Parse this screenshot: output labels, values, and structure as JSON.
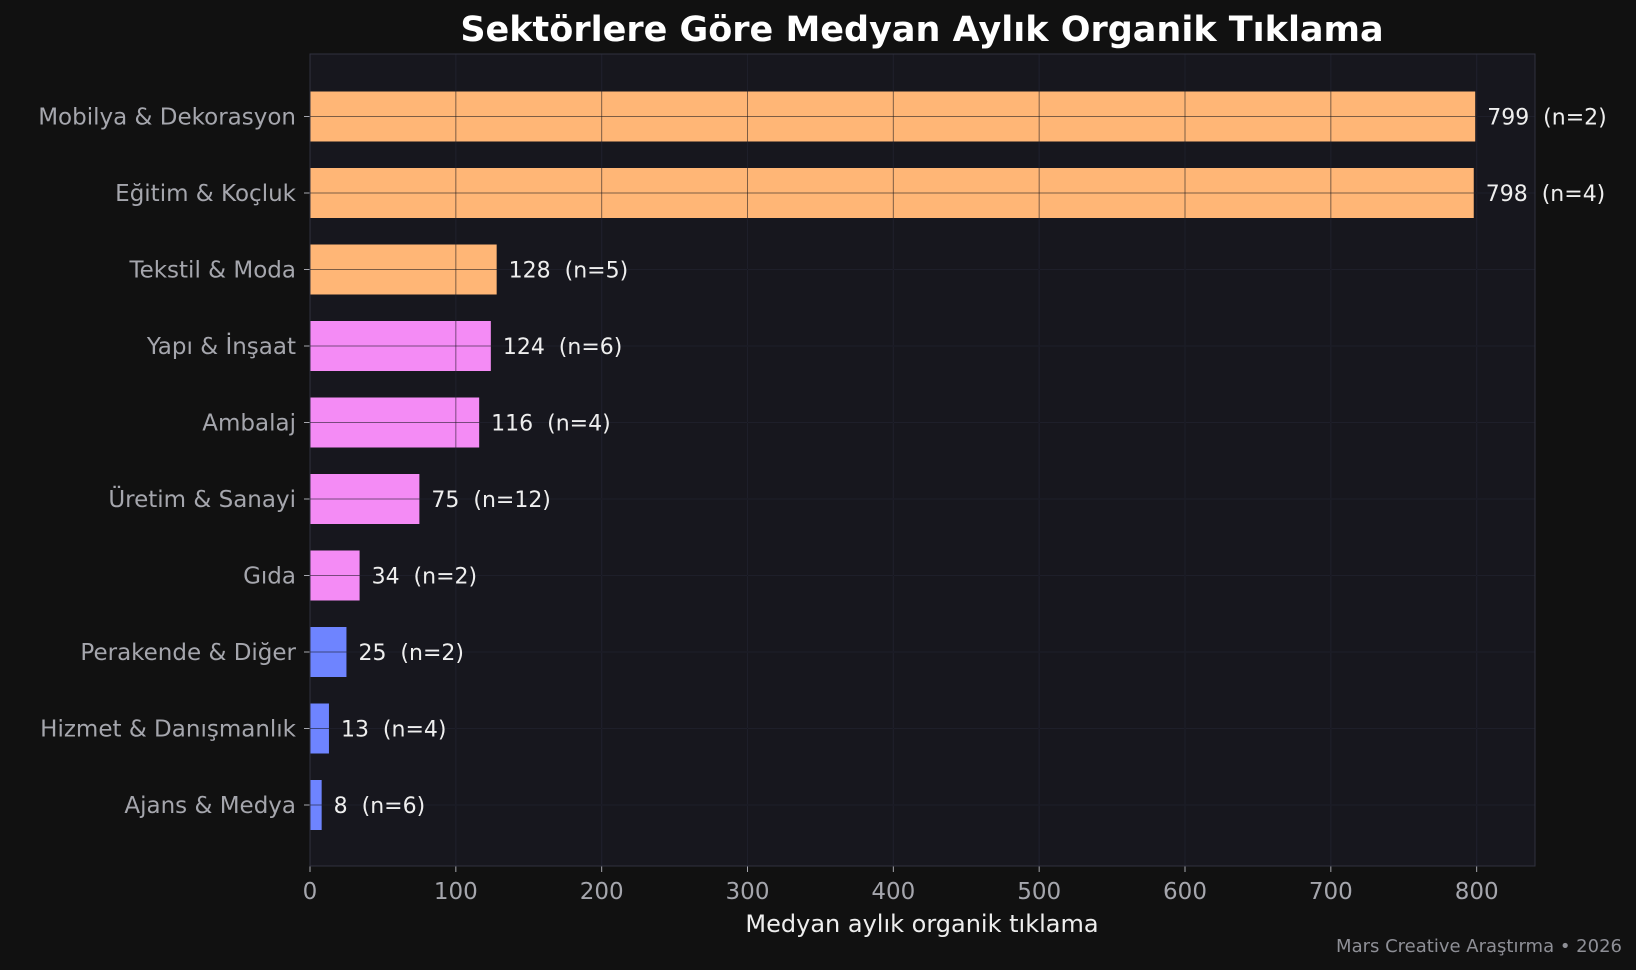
{
  "chart_data": {
    "type": "bar",
    "orientation": "horizontal",
    "title": "Sektörlere Göre Medyan Aylık Organik Tıklama",
    "xlabel": "Medyan aylık organik tıklama",
    "ylabel": "",
    "xlim": [
      0,
      840
    ],
    "xticks": [
      0,
      100,
      200,
      300,
      400,
      500,
      600,
      700,
      800
    ],
    "grid": true,
    "categories": [
      "Mobilya & Dekorasyon",
      "Eğitim & Koçluk",
      "Tekstil & Moda",
      "Yapı & İnşaat",
      "Ambalaj",
      "Üretim & Sanayi",
      "Gıda",
      "Perakende & Diğer",
      "Hizmet & Danışmanlık",
      "Ajans & Medya"
    ],
    "values": [
      799,
      798,
      128,
      124,
      116,
      75,
      34,
      25,
      13,
      8
    ],
    "value_labels": [
      "799  (n=2)",
      "798  (n=4)",
      "128  (n=5)",
      "124  (n=6)",
      "116  (n=4)",
      "75  (n=12)",
      "34  (n=2)",
      "25  (n=2)",
      "13  (n=4)",
      "8  (n=6)"
    ],
    "bar_colors": [
      "#ffb676",
      "#ffb676",
      "#ffb676",
      "#f48bf5",
      "#f48bf5",
      "#f48bf5",
      "#f48bf5",
      "#6e84ff",
      "#6e84ff",
      "#6e84ff"
    ]
  },
  "source_note": "Mars Creative Araştırma • 2026",
  "colors": {
    "page_background": "#111111",
    "plot_background": "#17171e",
    "grid": "#2b2d3c",
    "title": "#ffffff",
    "tick_text": "#a5a6ad",
    "value_text": "#eeeeee"
  }
}
